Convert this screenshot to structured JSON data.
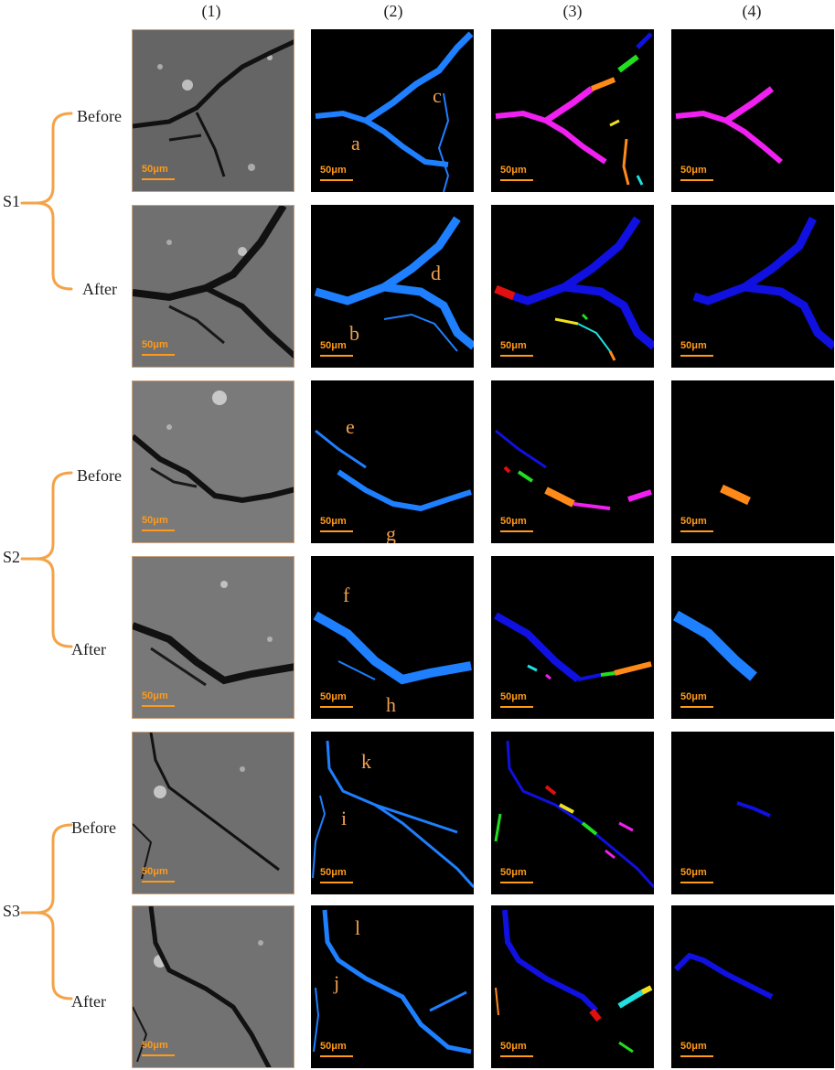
{
  "columns": [
    "(1)",
    "(2)",
    "(3)",
    "(4)"
  ],
  "groups": [
    {
      "label": "S1",
      "rows": [
        "Before",
        "After"
      ]
    },
    {
      "label": "S2",
      "rows": [
        "Before",
        "After"
      ]
    },
    {
      "label": "S3",
      "rows": [
        "Before",
        "After"
      ]
    }
  ],
  "scale_label": "50μm",
  "annotations": [
    "a",
    "b",
    "c",
    "d",
    "e",
    "f",
    "g",
    "h",
    "i",
    "j",
    "k",
    "l"
  ],
  "colors": {
    "bracket": "#f5a347",
    "scalebar": "#ff9a1a",
    "crack_blue": "#1e7fff",
    "crack_darkblue": "#1010e0",
    "magenta": "#f020f0",
    "orange": "#ff8a1a",
    "red": "#e01010",
    "green": "#20e020",
    "yellow": "#f0e020",
    "cyan": "#20e0e0"
  }
}
